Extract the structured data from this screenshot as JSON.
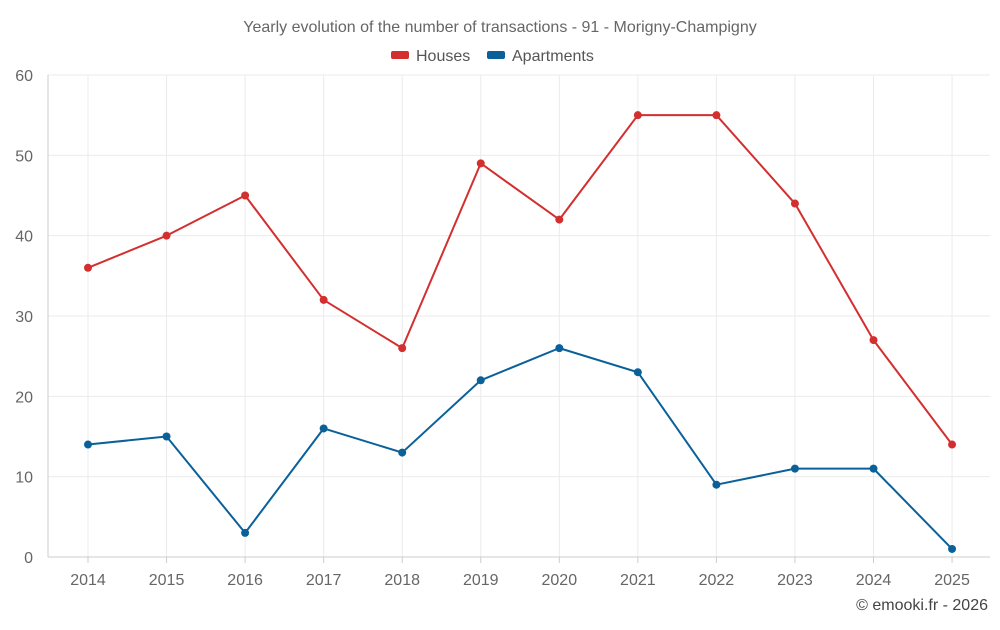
{
  "chart_data": {
    "type": "line",
    "title": "Yearly evolution of the number of transactions - 91 - Morigny-Champigny",
    "categories": [
      "2014",
      "2015",
      "2016",
      "2017",
      "2018",
      "2019",
      "2020",
      "2021",
      "2022",
      "2023",
      "2024",
      "2025"
    ],
    "series": [
      {
        "name": "Houses",
        "color": "#d32f2f",
        "values": [
          36,
          40,
          45,
          32,
          26,
          49,
          42,
          55,
          55,
          44,
          27,
          14
        ]
      },
      {
        "name": "Apartments",
        "color": "#0a6199",
        "values": [
          14,
          15,
          3,
          16,
          13,
          22,
          26,
          23,
          9,
          11,
          11,
          1
        ]
      }
    ],
    "ylim": [
      0,
      60
    ],
    "yticks": [
      "0",
      "10",
      "20",
      "30",
      "40",
      "50",
      "60"
    ],
    "xlabel": "",
    "ylabel": "",
    "grid": true,
    "legend_position": "top-center"
  },
  "credit": "© emooki.fr - 2026"
}
